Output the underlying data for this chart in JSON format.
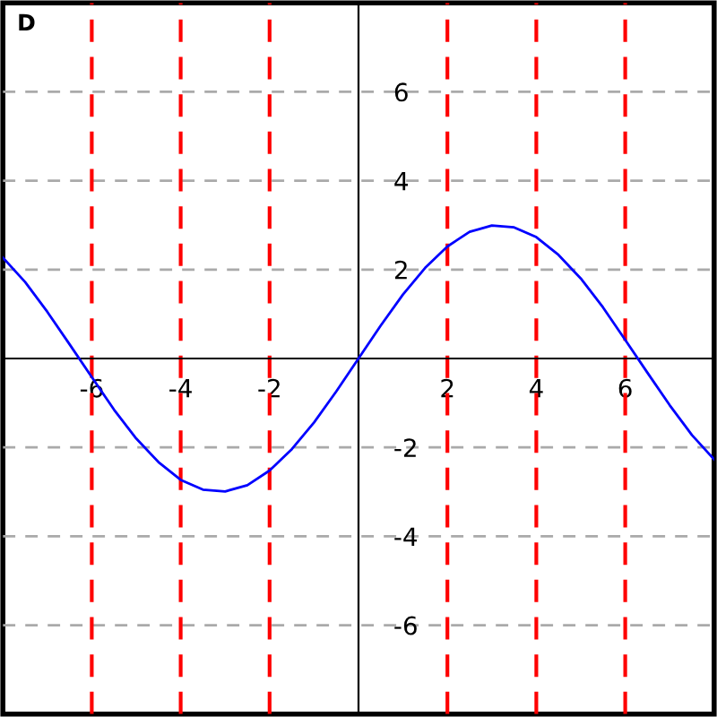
{
  "chart_data": {
    "type": "line",
    "x": [
      -8,
      -7.5,
      -7,
      -6.5,
      -6,
      -5.5,
      -5,
      -4.5,
      -4,
      -3.5,
      -3,
      -2.5,
      -2,
      -1.5,
      -1,
      -0.5,
      0,
      0.5,
      1,
      1.5,
      2,
      2.5,
      3,
      3.5,
      4,
      4.5,
      5,
      5.5,
      6,
      6.5,
      7,
      7.5,
      8
    ],
    "series": [
      {
        "color": "#0000ff",
        "values": [
          2.27,
          1.72,
          1.05,
          0.32,
          -0.42,
          -1.15,
          -1.8,
          -2.33,
          -2.73,
          -2.95,
          -2.99,
          -2.85,
          -2.52,
          -2.04,
          -1.44,
          -0.74,
          0,
          0.74,
          1.44,
          2.04,
          2.52,
          2.85,
          2.99,
          2.95,
          2.73,
          2.33,
          1.8,
          1.15,
          0.42,
          -0.32,
          -1.05,
          -1.72,
          -2.27
        ]
      }
    ],
    "xlim": [
      -8,
      8
    ],
    "ylim": [
      -8,
      8
    ],
    "xticks": [
      -6,
      -4,
      -2,
      2,
      4,
      6
    ],
    "yticks": [
      -6,
      -4,
      -2,
      2,
      4,
      6
    ],
    "grid": "y",
    "marker": "none",
    "line_style": "solid",
    "ref_lines": [
      {
        "axis": "x",
        "value": -6,
        "color": "#ff0000",
        "line_style": "dashed"
      },
      {
        "axis": "x",
        "value": -4,
        "color": "#ff0000",
        "line_style": "dashed"
      },
      {
        "axis": "x",
        "value": -2,
        "color": "#ff0000",
        "line_style": "dashed"
      },
      {
        "axis": "x",
        "value": 2,
        "color": "#ff0000",
        "line_style": "dashed"
      },
      {
        "axis": "x",
        "value": 4,
        "color": "#ff0000",
        "line_style": "dashed"
      },
      {
        "axis": "x",
        "value": 6,
        "color": "#ff0000",
        "line_style": "dashed"
      }
    ],
    "annotations": [
      "D"
    ]
  }
}
